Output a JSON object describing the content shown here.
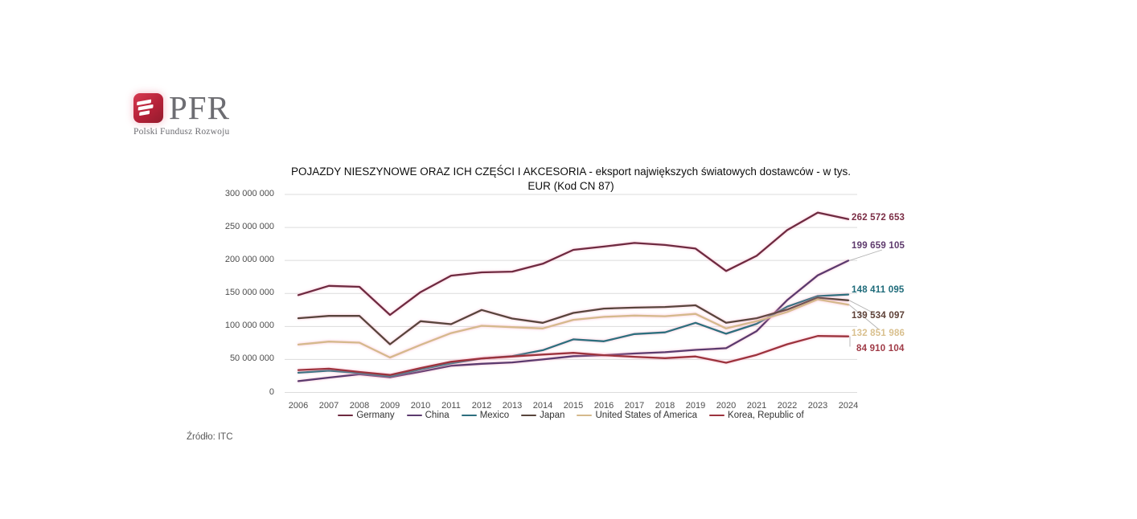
{
  "logo": {
    "brand": "PFR",
    "subtitle": "Polski Fundusz Rozwoju",
    "icon": "pfr-flag-icon",
    "brand_color": "#6d6d72",
    "icon_red": "#b52138"
  },
  "chart_data": {
    "type": "line",
    "title_line1": "POJAZDY NIESZYNOWE ORAZ ICH CZĘŚCI I AKCESORIA - eksport największych światowych dostawców - w tys.",
    "title_line2": "EUR (Kod CN 87)",
    "x": [
      2006,
      2007,
      2008,
      2009,
      2010,
      2011,
      2012,
      2013,
      2014,
      2015,
      2016,
      2017,
      2018,
      2019,
      2020,
      2021,
      2022,
      2023,
      2024
    ],
    "ylim": [
      0,
      300000000
    ],
    "y_tick_step": 50000000,
    "y_tick_labels": [
      "300 000 000",
      "250 000 000",
      "200 000 000",
      "150 000 000",
      "100 000 000",
      "50 000 000",
      "0"
    ],
    "grid": true,
    "legend_position": "bottom",
    "series": [
      {
        "name": "Germany",
        "color": "#6e2a40",
        "label_color": "#7b2d45",
        "end_label": "262 572 653",
        "values": [
          147500000,
          161500000,
          160000000,
          117500000,
          152000000,
          177000000,
          182000000,
          183000000,
          195000000,
          216000000,
          221000000,
          226500000,
          223500000,
          218000000,
          184000000,
          207000000,
          246000000,
          272500000,
          262572653
        ]
      },
      {
        "name": "China",
        "color": "#5b3a6e",
        "label_color": "#5e3a6d",
        "end_label": "199 659 105",
        "values": [
          17200000,
          22500000,
          27500000,
          23000000,
          31500000,
          40500000,
          43500000,
          45500000,
          50000000,
          55000000,
          56500000,
          59000000,
          61000000,
          64500000,
          67000000,
          93000000,
          140000000,
          177500000,
          199659105
        ]
      },
      {
        "name": "Mexico",
        "color": "#2d6f7e",
        "label_color": "#1e6b7a",
        "end_label": "148 411 095",
        "values": [
          30000000,
          33000000,
          29500000,
          24500000,
          35000000,
          44000000,
          51500000,
          55000000,
          64000000,
          80500000,
          77500000,
          88500000,
          91000000,
          105500000,
          89000000,
          104000000,
          130000000,
          146000000,
          148411095
        ]
      },
      {
        "name": "Japan",
        "color": "#58443c",
        "label_color": "#5d4037",
        "end_label": "139 534 097",
        "values": [
          112500000,
          116000000,
          116000000,
          73000000,
          108000000,
          103500000,
          125000000,
          112000000,
          105500000,
          120500000,
          127000000,
          128500000,
          129500000,
          132000000,
          105500000,
          112500000,
          125500000,
          143500000,
          139534097
        ]
      },
      {
        "name": "United States of America",
        "color": "#d5b98c",
        "label_color": "#d9c08e",
        "end_label": "132 851 986",
        "values": [
          72500000,
          77000000,
          75500000,
          53000000,
          72000000,
          90000000,
          101000000,
          99000000,
          97000000,
          110000000,
          114500000,
          116500000,
          115500000,
          119000000,
          97000000,
          108000000,
          122000000,
          141000000,
          132851986
        ]
      },
      {
        "name": "Korea, Republic of",
        "color": "#9c333d",
        "label_color": "#a03b47",
        "end_label": "84 910 104",
        "values": [
          34000000,
          36000000,
          31000000,
          26500000,
          37000000,
          46500000,
          51500000,
          54500000,
          57500000,
          60000000,
          56500000,
          54000000,
          52000000,
          54500000,
          45000000,
          57000000,
          73000000,
          85500000,
          84910104
        ]
      }
    ]
  },
  "source": "Źródło: ITC"
}
